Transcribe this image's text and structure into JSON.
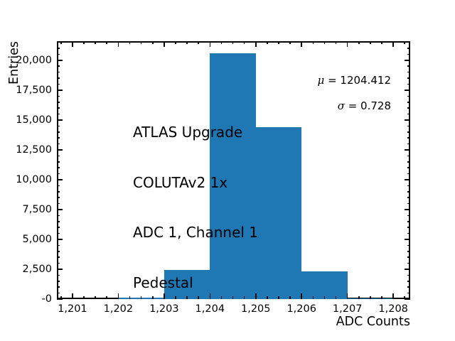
{
  "chart_data": {
    "type": "bar",
    "subtype": "histogram",
    "title": "",
    "xlabel": "ADC Counts",
    "ylabel": "Entries",
    "bin_edges": [
      1202,
      1203,
      1204,
      1205,
      1206,
      1207,
      1208
    ],
    "counts": [
      140,
      2440,
      20580,
      14410,
      2300,
      50
    ],
    "categories": [
      "1202-1203",
      "1203-1204",
      "1204-1205",
      "1205-1206",
      "1206-1207",
      "1207-1208"
    ],
    "xlim": [
      1200.66,
      1208.37
    ],
    "ylim": [
      0,
      21600
    ],
    "x_major_tick_step": 1,
    "x_minor_tick_step": 0.25,
    "y_major_tick_step": 2500,
    "y_minor_tick_step": 500,
    "x_tick_labels": [
      "1,201",
      "1,202",
      "1,203",
      "1,204",
      "1,205",
      "1,206",
      "1,207",
      "1,208"
    ],
    "y_tick_labels": [
      "0",
      "2,500",
      "5,000",
      "7,500",
      "10,000",
      "12,500",
      "15,000",
      "17,500",
      "20,000"
    ],
    "grid": false,
    "legend": null,
    "tick_direction": "in",
    "bar_color": "#1f77b4",
    "spine_color": "#000000",
    "annotation": {
      "lines": [
        "ATLAS Upgrade",
        "COLUTAv2 1x",
        "ADC 1, Channel 1",
        "Pedestal"
      ]
    },
    "stats": [
      {
        "symbol": "μ",
        "text": "= 1204.412"
      },
      {
        "symbol": "σ",
        "text": "= 0.728"
      }
    ]
  }
}
